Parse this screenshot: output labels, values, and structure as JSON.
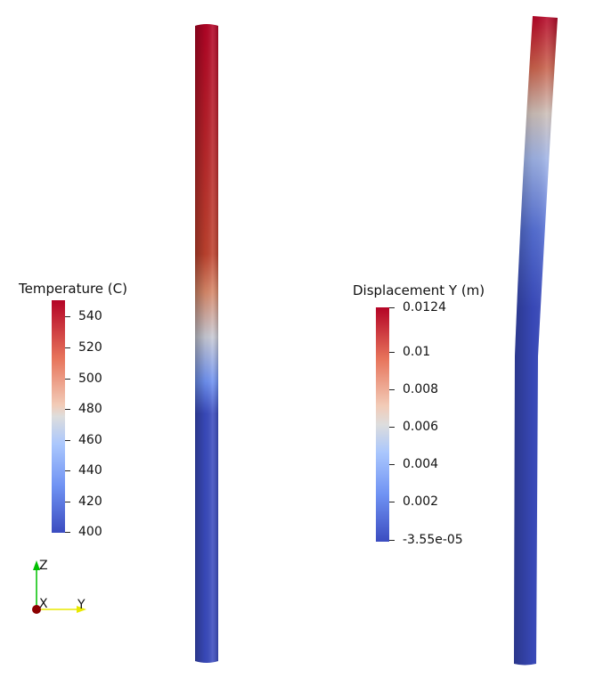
{
  "views": {
    "left": {
      "colorbar": {
        "title": "Temperature (C)",
        "ticks": [
          "540",
          "520",
          "500",
          "480",
          "460",
          "440",
          "420",
          "400"
        ]
      }
    },
    "right": {
      "colorbar": {
        "title": "Displacement Y (m)",
        "ticks": [
          "0.0124",
          "0.01",
          "0.008",
          "0.006",
          "0.004",
          "0.002",
          "-3.55e-05"
        ]
      }
    }
  },
  "colormap": {
    "name": "Cool to Warm",
    "low": "#3b4cc0",
    "mid": "#dddddd",
    "high": "#b40426"
  },
  "orientation_axes": {
    "x_label": "X",
    "y_label": "Y",
    "z_label": "Z",
    "x_color": "#8b0000",
    "y_color": "#f0f000",
    "z_color": "#00c000"
  }
}
